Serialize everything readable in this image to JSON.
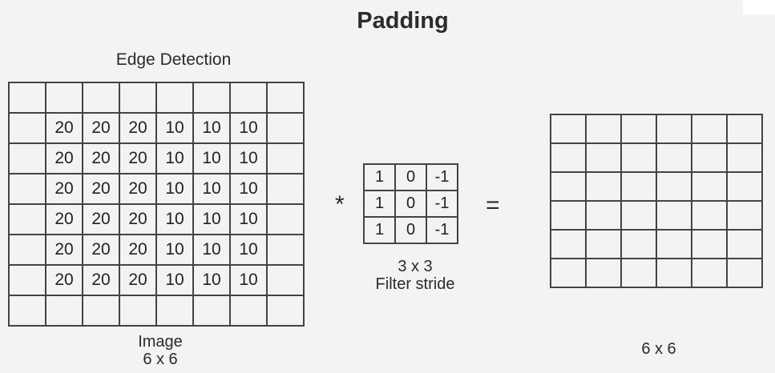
{
  "title": "Padding",
  "subtitle": "Edge Detection",
  "image": {
    "label_line1": "Image",
    "label_line2": "6 x 6",
    "rows": [
      [
        "",
        "",
        "",
        "",
        "",
        "",
        "",
        ""
      ],
      [
        "",
        "20",
        "20",
        "20",
        "10",
        "10",
        "10",
        ""
      ],
      [
        "",
        "20",
        "20",
        "20",
        "10",
        "10",
        "10",
        ""
      ],
      [
        "",
        "20",
        "20",
        "20",
        "10",
        "10",
        "10",
        ""
      ],
      [
        "",
        "20",
        "20",
        "20",
        "10",
        "10",
        "10",
        ""
      ],
      [
        "",
        "20",
        "20",
        "20",
        "10",
        "10",
        "10",
        ""
      ],
      [
        "",
        "20",
        "20",
        "20",
        "10",
        "10",
        "10",
        ""
      ],
      [
        "",
        "",
        "",
        "",
        "",
        "",
        "",
        ""
      ]
    ]
  },
  "operator_convolve": "*",
  "filter": {
    "label_line1": "3 x 3",
    "label_line2": "Filter stride",
    "rows": [
      [
        "1",
        "0",
        "-1"
      ],
      [
        "1",
        "0",
        "-1"
      ],
      [
        "1",
        "0",
        "-1"
      ]
    ]
  },
  "operator_equals": "=",
  "output": {
    "label": "6 x 6",
    "row_count": 6,
    "col_count": 6
  }
}
